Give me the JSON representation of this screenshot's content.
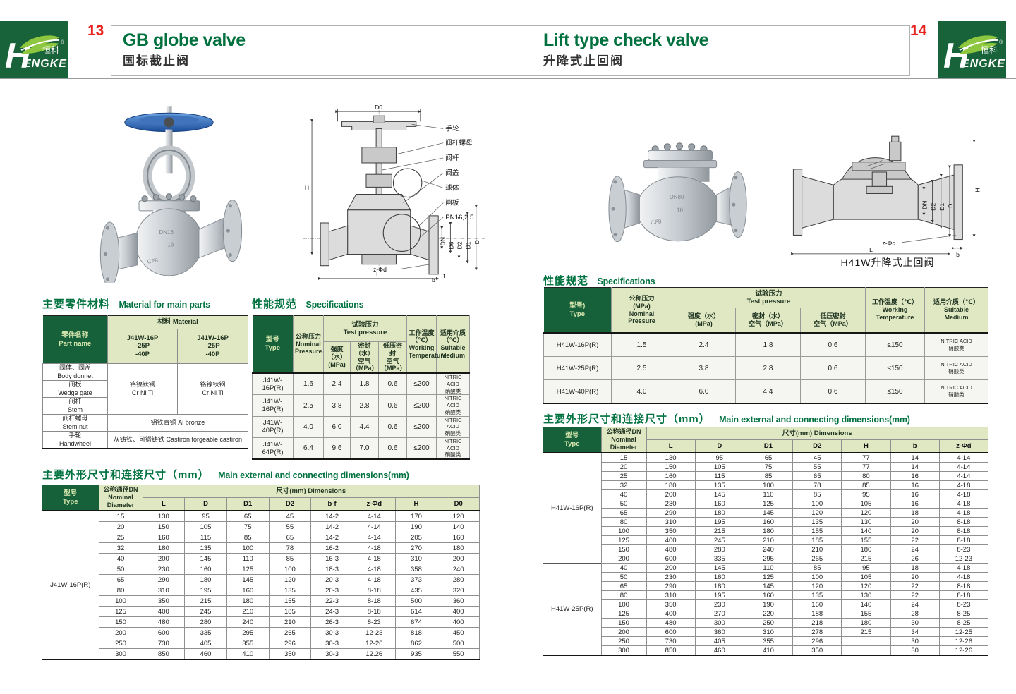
{
  "colors": {
    "brand_green": "#17613a",
    "leaf_green": "#8dc63f",
    "header_light_green": "#dfe8c3",
    "title_green": "#00713e",
    "page_number_red": "#e8221f"
  },
  "header": {
    "left_page_number": "13",
    "right_page_number": "14",
    "brand_h": "H",
    "brand_rest": "ENGKE",
    "brand_cn": "恒科",
    "brand_reg": "®",
    "left_title_en": "GB globe valve",
    "left_title_zh": "国标截止阀",
    "right_title_en": "Lift type check valve",
    "right_title_zh": "升降式止回阀"
  },
  "left": {
    "material": {
      "title_zh": "主要零件材料",
      "title_en": "Material for main parts",
      "part_header": "零件名称\nPart name",
      "material_header": "材料 Material",
      "models": [
        "J41W-16P\n-25P\n-40P",
        "J41W-16P\n-25P\n-40P"
      ],
      "parts": [
        "阀体、阀盖\nBody donnet",
        "阀板\nWedge gate",
        "阀杆\nStem",
        "阀杆螺母\nStem nut",
        "手轮\nHandwheel"
      ],
      "mat_crniti": "铬镍钛钢\nCr Ni Ti",
      "mat_crniti2": "铬镍钛钢\nCr Ni Ti",
      "mat_bronze": "铝铁青铜 Al bronze",
      "mat_castiron": "灰铸铁、可锻铸铁 Castiron forgeable castiron"
    },
    "spec": {
      "title_zh": "性能规范",
      "title_en": "Specifications",
      "h_type": "型号\nType",
      "h_nominal": "公称压力\nNominal\nPressure",
      "h_test": "试验压力\nTest pressure",
      "h_t1": "强度（水）\n(MPa)",
      "h_t2": "密封（水）\n空气（MPa）",
      "h_t3": "低压密封\n空气（MPa）",
      "h_temp": "工作温度\n（℃）\nWorking\nTemperature",
      "h_medium": "适用介质\n（℃）\nSuitable\nMedium",
      "rows": [
        [
          "J41W-16P(R)",
          "1.6",
          "2.4",
          "1.8",
          "0.6",
          "≤200",
          "NITRIC ACID\n硝酸类"
        ],
        [
          "J41W-16P(R)",
          "2.5",
          "3.8",
          "2.8",
          "0.6",
          "≤200",
          "NITRIC ACID\n硝酸类"
        ],
        [
          "J41W-40P(R)",
          "4.0",
          "6.0",
          "4.4",
          "0.6",
          "≤200",
          "NITRIC ACID\n硝酸类"
        ],
        [
          "J41W-64P(R)",
          "6.4",
          "9.6",
          "7.0",
          "0.6",
          "≤200",
          "NITRIC ACID\n硝酸类"
        ]
      ]
    },
    "dims": {
      "title_zh": "主要外形尺寸和连接尺寸（mm）",
      "title_en": "Main external and connecting dimensions(mm)",
      "h_type": "型号\nType",
      "h_dn": "公称通径DN\nNominal\nDiameter",
      "h_band": "尺寸(mm) Dimensions",
      "cols": [
        "L",
        "D",
        "D1",
        "D2",
        "b-f",
        "z-Φd",
        "H",
        "D0"
      ],
      "type_label": "J41W-16P(R)",
      "rows": [
        [
          "15",
          "130",
          "95",
          "65",
          "45",
          "14-2",
          "4-14",
          "170",
          "120"
        ],
        [
          "20",
          "150",
          "105",
          "75",
          "55",
          "14-2",
          "4-14",
          "190",
          "140"
        ],
        [
          "25",
          "160",
          "115",
          "85",
          "65",
          "14-2",
          "4-14",
          "205",
          "160"
        ],
        [
          "32",
          "180",
          "135",
          "100",
          "78",
          "16-2",
          "4-18",
          "270",
          "180"
        ],
        [
          "40",
          "200",
          "145",
          "110",
          "85",
          "16-3",
          "4-18",
          "310",
          "200"
        ],
        [
          "50",
          "230",
          "160",
          "125",
          "100",
          "18-3",
          "4-18",
          "358",
          "240"
        ],
        [
          "65",
          "290",
          "180",
          "145",
          "120",
          "20-3",
          "4-18",
          "373",
          "280"
        ],
        [
          "80",
          "310",
          "195",
          "160",
          "135",
          "20-3",
          "8-18",
          "435",
          "320"
        ],
        [
          "100",
          "350",
          "215",
          "180",
          "155",
          "22-3",
          "8-18",
          "500",
          "360"
        ],
        [
          "125",
          "400",
          "245",
          "210",
          "185",
          "24-3",
          "8-18",
          "614",
          "400"
        ],
        [
          "150",
          "480",
          "280",
          "240",
          "210",
          "26-3",
          "8-23",
          "674",
          "400"
        ],
        [
          "200",
          "600",
          "335",
          "295",
          "265",
          "30-3",
          "12-23",
          "818",
          "450"
        ],
        [
          "250",
          "730",
          "405",
          "355",
          "296",
          "30-3",
          "12-26",
          "862",
          "500"
        ],
        [
          "300",
          "850",
          "460",
          "410",
          "350",
          "30-3",
          "12.26",
          "935",
          "550"
        ]
      ]
    },
    "drawing": {
      "d0": "D0",
      "h": "H",
      "callouts": [
        "手轮",
        "阀杆螺母",
        "阀杆",
        "阀盖",
        "球体",
        "闸板",
        "PN16,2.5"
      ],
      "flange_dims": [
        "DN",
        "D6",
        "D2",
        "D1",
        "D"
      ],
      "zphid": "z-Φd",
      "l": "L",
      "b": "b",
      "f": "f"
    },
    "photo_markings": [
      "DN16",
      "16",
      "CF8"
    ]
  },
  "right": {
    "spec": {
      "title_zh": "性能规范",
      "title_en": "Specifications",
      "h_type": "型号)\nType",
      "h_nominal": "公称压力\n(MPa)\nNominal\nPressure",
      "h_test": "试验压力\nTest pressure",
      "h_t1": "强度（水）\n(MPa)",
      "h_t2": "密封（水）\n空气（MPa）",
      "h_t3": "低压密封\n空气（MPa）",
      "h_temp": "工作温度（℃）\nWorking\nTemperature",
      "h_medium": "适用介质（℃）\nSuitable\nMedium",
      "rows": [
        [
          "H41W-16P(R)",
          "1.5",
          "2.4",
          "1.8",
          "0.6",
          "≤150",
          "NITRIC ACID\n硝酸类"
        ],
        [
          "H41W-25P(R)",
          "2.5",
          "3.8",
          "2.8",
          "0.6",
          "≤150",
          "NITRIC ACID\n硝酸类"
        ],
        [
          "H41W-40P(R)",
          "4.0",
          "6.0",
          "4.4",
          "0.6",
          "≤150",
          "NITRIC ACID\n硝酸类"
        ]
      ]
    },
    "dims": {
      "title_zh": "主要外形尺寸和连接尺寸（mm）",
      "title_en": "Main external and connecting dimensions(mm)",
      "h_type": "型号\nType",
      "h_dn": "公称通径DN\nNominal\nDiameter",
      "h_band": "尺寸(mm) Dimensions",
      "cols": [
        "L",
        "D",
        "D1",
        "D2",
        "H",
        "b",
        "z-Φd"
      ],
      "sections": [
        {
          "type": "H41W-16P(R)",
          "rows": [
            [
              "15",
              "130",
              "95",
              "65",
              "45",
              "77",
              "14",
              "4-14"
            ],
            [
              "20",
              "150",
              "105",
              "75",
              "55",
              "77",
              "14",
              "4-14"
            ],
            [
              "25",
              "160",
              "115",
              "85",
              "65",
              "80",
              "16",
              "4-14"
            ],
            [
              "32",
              "180",
              "135",
              "100",
              "78",
              "85",
              "16",
              "4-18"
            ],
            [
              "40",
              "200",
              "145",
              "110",
              "85",
              "95",
              "16",
              "4-18"
            ],
            [
              "50",
              "230",
              "160",
              "125",
              "100",
              "105",
              "16",
              "4-18"
            ],
            [
              "65",
              "290",
              "180",
              "145",
              "120",
              "120",
              "18",
              "4-18"
            ],
            [
              "80",
              "310",
              "195",
              "160",
              "135",
              "130",
              "20",
              "8-18"
            ],
            [
              "100",
              "350",
              "215",
              "180",
              "155",
              "140",
              "20",
              "8-18"
            ],
            [
              "125",
              "400",
              "245",
              "210",
              "185",
              "155",
              "22",
              "8-18"
            ],
            [
              "150",
              "480",
              "280",
              "240",
              "210",
              "180",
              "24",
              "8-23"
            ],
            [
              "200",
              "600",
              "335",
              "295",
              "265",
              "215",
              "26",
              "12-23"
            ]
          ]
        },
        {
          "type": "H41W-25P(R)",
          "rows": [
            [
              "40",
              "200",
              "145",
              "110",
              "85",
              "95",
              "18",
              "4-18"
            ],
            [
              "50",
              "230",
              "160",
              "125",
              "100",
              "105",
              "20",
              "4-18"
            ],
            [
              "65",
              "290",
              "180",
              "145",
              "120",
              "120",
              "22",
              "8-18"
            ],
            [
              "80",
              "310",
              "195",
              "160",
              "135",
              "130",
              "22",
              "8-18"
            ],
            [
              "100",
              "350",
              "230",
              "190",
              "160",
              "140",
              "24",
              "8-23"
            ],
            [
              "125",
              "400",
              "270",
              "220",
              "188",
              "155",
              "28",
              "8-25"
            ],
            [
              "150",
              "480",
              "300",
              "250",
              "218",
              "180",
              "30",
              "8-25"
            ],
            [
              "200",
              "600",
              "360",
              "310",
              "278",
              "215",
              "34",
              "12-25"
            ],
            [
              "250",
              "730",
              "405",
              "355",
              "296",
              "",
              "30",
              "12-26"
            ],
            [
              "300",
              "850",
              "460",
              "410",
              "350",
              "",
              "30",
              "12-26"
            ]
          ]
        }
      ]
    },
    "drawing": {
      "h": "H",
      "flange_dims": [
        "DN",
        "D2",
        "D1",
        "D"
      ],
      "zphid": "z-Φd",
      "l": "L",
      "b": "b",
      "caption": "H41W升降式止回阀"
    },
    "photo_markings": [
      "DN80",
      "16",
      "CF8"
    ]
  }
}
